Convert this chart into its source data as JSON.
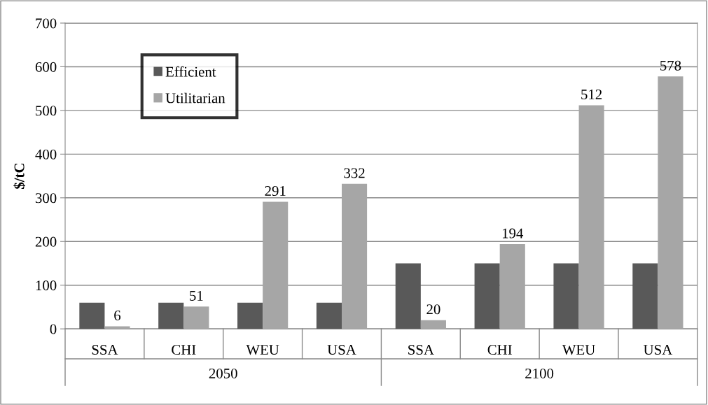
{
  "chart_data": {
    "type": "bar",
    "ylabel": "$/tC",
    "categories": [
      "SSA",
      "CHI",
      "WEU",
      "USA",
      "SSA",
      "CHI",
      "WEU",
      "USA"
    ],
    "series": [
      {
        "name": "Efficient",
        "color": "#595959",
        "values": [
          60,
          60,
          60,
          60,
          150,
          150,
          150,
          150
        ]
      },
      {
        "name": "Utilitarian",
        "color": "#a6a6a6",
        "values": [
          6,
          51,
          291,
          332,
          20,
          194,
          512,
          578
        ],
        "value_labels": [
          "6",
          "51",
          "291",
          "332",
          "20",
          "194",
          "512",
          "578"
        ]
      }
    ],
    "annotations": [
      "2050",
      "2100"
    ],
    "ylim": [
      0,
      700
    ],
    "yticks": [
      0,
      100,
      200,
      300,
      400,
      500,
      600,
      700
    ],
    "grid": "y",
    "legend": "top left"
  }
}
